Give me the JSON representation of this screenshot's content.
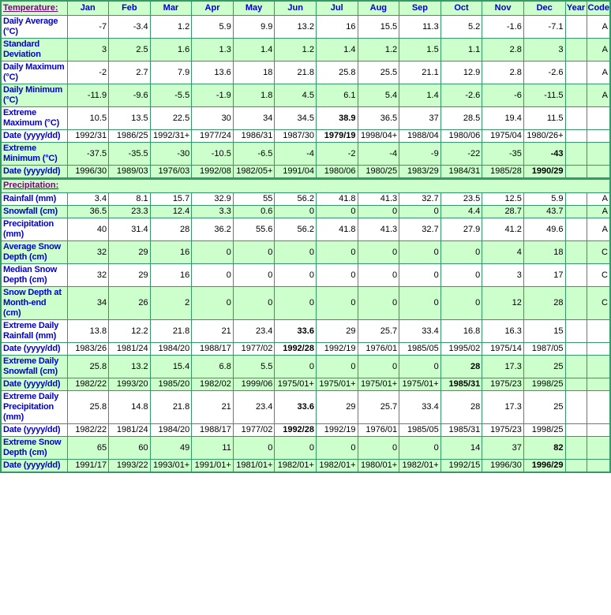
{
  "colors": {
    "border_green": "#339966",
    "row_green": "#CCFFCC",
    "row_white": "#FFFFFF",
    "label_blue": "#0000CC",
    "section_purple": "#800080",
    "value_text": "#000000"
  },
  "table": {
    "months": [
      "Jan",
      "Feb",
      "Mar",
      "Apr",
      "May",
      "Jun",
      "Jul",
      "Aug",
      "Sep",
      "Oct",
      "Nov",
      "Dec"
    ],
    "year_label": "Year",
    "code_label": "Code",
    "sections": [
      {
        "title": "Temperature:",
        "rows": [
          {
            "label": "Daily Average (°C)",
            "bg": "white",
            "code": "A",
            "bold": [],
            "values": [
              "-7",
              "-3.4",
              "1.2",
              "5.9",
              "9.9",
              "13.2",
              "16",
              "15.5",
              "11.3",
              "5.2",
              "-1.6",
              "-7.1"
            ]
          },
          {
            "label": "Standard Deviation",
            "bg": "green",
            "code": "A",
            "bold": [],
            "values": [
              "3",
              "2.5",
              "1.6",
              "1.3",
              "1.4",
              "1.2",
              "1.4",
              "1.2",
              "1.5",
              "1.1",
              "2.8",
              "3"
            ]
          },
          {
            "label": "Daily Maximum (°C)",
            "bg": "white",
            "code": "A",
            "bold": [],
            "values": [
              "-2",
              "2.7",
              "7.9",
              "13.6",
              "18",
              "21.8",
              "25.8",
              "25.5",
              "21.1",
              "12.9",
              "2.8",
              "-2.6"
            ]
          },
          {
            "label": "Daily Minimum (°C)",
            "bg": "green",
            "code": "A",
            "bold": [],
            "values": [
              "-11.9",
              "-9.6",
              "-5.5",
              "-1.9",
              "1.8",
              "4.5",
              "6.1",
              "5.4",
              "1.4",
              "-2.6",
              "-6",
              "-11.5"
            ]
          },
          {
            "label": "Extreme Maximum (°C)",
            "bg": "white",
            "code": "",
            "bold": [
              6
            ],
            "values": [
              "10.5",
              "13.5",
              "22.5",
              "30",
              "34",
              "34.5",
              "38.9",
              "36.5",
              "37",
              "28.5",
              "19.4",
              "11.5"
            ]
          },
          {
            "label": "Date (yyyy/dd)",
            "bg": "white",
            "code": "",
            "bold": [
              6
            ],
            "values": [
              "1992/31",
              "1986/25",
              "1992/31+",
              "1977/24",
              "1986/31",
              "1987/30",
              "1979/19",
              "1998/04+",
              "1988/04",
              "1980/06",
              "1975/04",
              "1980/26+"
            ]
          },
          {
            "label": "Extreme Minimum (°C)",
            "bg": "green",
            "code": "",
            "bold": [
              11
            ],
            "values": [
              "-37.5",
              "-35.5",
              "-30",
              "-10.5",
              "-6.5",
              "-4",
              "-2",
              "-4",
              "-9",
              "-22",
              "-35",
              "-43"
            ]
          },
          {
            "label": "Date (yyyy/dd)",
            "bg": "green",
            "code": "",
            "bold": [
              11
            ],
            "values": [
              "1996/30",
              "1989/03",
              "1976/03",
              "1992/08",
              "1982/05+",
              "1991/04",
              "1980/06",
              "1980/25",
              "1983/29",
              "1984/31",
              "1985/28",
              "1990/29"
            ]
          }
        ]
      },
      {
        "title": "Precipitation:",
        "rows": [
          {
            "label": "Rainfall (mm)",
            "bg": "white",
            "code": "A",
            "bold": [],
            "values": [
              "3.4",
              "8.1",
              "15.7",
              "32.9",
              "55",
              "56.2",
              "41.8",
              "41.3",
              "32.7",
              "23.5",
              "12.5",
              "5.9"
            ]
          },
          {
            "label": "Snowfall (cm)",
            "bg": "green",
            "code": "A",
            "bold": [],
            "values": [
              "36.5",
              "23.3",
              "12.4",
              "3.3",
              "0.6",
              "0",
              "0",
              "0",
              "0",
              "4.4",
              "28.7",
              "43.7"
            ]
          },
          {
            "label": "Precipitation (mm)",
            "bg": "white",
            "code": "A",
            "bold": [],
            "values": [
              "40",
              "31.4",
              "28",
              "36.2",
              "55.6",
              "56.2",
              "41.8",
              "41.3",
              "32.7",
              "27.9",
              "41.2",
              "49.6"
            ]
          },
          {
            "label": "Average Snow Depth (cm)",
            "bg": "green",
            "code": "C",
            "bold": [],
            "values": [
              "32",
              "29",
              "16",
              "0",
              "0",
              "0",
              "0",
              "0",
              "0",
              "0",
              "4",
              "18"
            ]
          },
          {
            "label": "Median Snow Depth (cm)",
            "bg": "white",
            "code": "C",
            "bold": [],
            "values": [
              "32",
              "29",
              "16",
              "0",
              "0",
              "0",
              "0",
              "0",
              "0",
              "0",
              "3",
              "17"
            ]
          },
          {
            "label": "Snow Depth at Month-end (cm)",
            "bg": "green",
            "code": "C",
            "bold": [],
            "values": [
              "34",
              "26",
              "2",
              "0",
              "0",
              "0",
              "0",
              "0",
              "0",
              "0",
              "12",
              "28"
            ]
          },
          {
            "label": "Extreme Daily Rainfall (mm)",
            "bg": "white",
            "code": "",
            "bold": [
              5
            ],
            "values": [
              "13.8",
              "12.2",
              "21.8",
              "21",
              "23.4",
              "33.6",
              "29",
              "25.7",
              "33.4",
              "16.8",
              "16.3",
              "15"
            ]
          },
          {
            "label": "Date (yyyy/dd)",
            "bg": "white",
            "code": "",
            "bold": [
              5
            ],
            "values": [
              "1983/26",
              "1981/24",
              "1984/20",
              "1988/17",
              "1977/02",
              "1992/28",
              "1992/19",
              "1976/01",
              "1985/05",
              "1995/02",
              "1975/14",
              "1987/05"
            ]
          },
          {
            "label": "Extreme Daily Snowfall (cm)",
            "bg": "green",
            "code": "",
            "bold": [
              9
            ],
            "values": [
              "25.8",
              "13.2",
              "15.4",
              "6.8",
              "5.5",
              "0",
              "0",
              "0",
              "0",
              "28",
              "17.3",
              "25"
            ]
          },
          {
            "label": "Date (yyyy/dd)",
            "bg": "green",
            "code": "",
            "bold": [
              9
            ],
            "values": [
              "1982/22",
              "1993/20",
              "1985/20",
              "1982/02",
              "1999/06",
              "1975/01+",
              "1975/01+",
              "1975/01+",
              "1975/01+",
              "1985/31",
              "1975/23",
              "1998/25"
            ]
          },
          {
            "label": "Extreme Daily Precipitation (mm)",
            "bg": "white",
            "code": "",
            "bold": [
              5
            ],
            "values": [
              "25.8",
              "14.8",
              "21.8",
              "21",
              "23.4",
              "33.6",
              "29",
              "25.7",
              "33.4",
              "28",
              "17.3",
              "25"
            ]
          },
          {
            "label": "Date (yyyy/dd)",
            "bg": "white",
            "code": "",
            "bold": [
              5
            ],
            "values": [
              "1982/22",
              "1981/24",
              "1984/20",
              "1988/17",
              "1977/02",
              "1992/28",
              "1992/19",
              "1976/01",
              "1985/05",
              "1985/31",
              "1975/23",
              "1998/25"
            ]
          },
          {
            "label": "Extreme Snow Depth (cm)",
            "bg": "green",
            "code": "",
            "bold": [
              11
            ],
            "values": [
              "65",
              "60",
              "49",
              "11",
              "0",
              "0",
              "0",
              "0",
              "0",
              "14",
              "37",
              "82"
            ]
          },
          {
            "label": "Date (yyyy/dd)",
            "bg": "green",
            "code": "",
            "bold": [
              11
            ],
            "values": [
              "1991/17",
              "1993/22",
              "1993/01+",
              "1991/01+",
              "1981/01+",
              "1982/01+",
              "1982/01+",
              "1980/01+",
              "1982/01+",
              "1992/15",
              "1996/30",
              "1996/29"
            ]
          }
        ]
      }
    ]
  }
}
